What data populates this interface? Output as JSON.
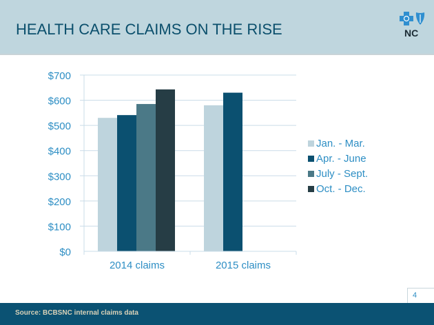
{
  "header": {
    "title": "HEALTH CARE CLAIMS ON THE RISE",
    "logo_text": "NC"
  },
  "footer": {
    "source": "Source: BCBSNC internal claims data",
    "page_number": "4"
  },
  "colors": {
    "header_bg": "#bfd6de",
    "title": "#0b4f6c",
    "axis_text": "#2d8ec4",
    "footer_bg": "#0b5273"
  },
  "chart_data": {
    "type": "bar",
    "title": "HEALTH CARE CLAIMS ON THE RISE",
    "xlabel": "",
    "ylabel": "",
    "ylim": [
      0,
      700
    ],
    "yticks": [
      0,
      100,
      200,
      300,
      400,
      500,
      600,
      700
    ],
    "ytick_labels": [
      "$0",
      "$100",
      "$200",
      "$300",
      "$400",
      "$500",
      "$600",
      "$700"
    ],
    "categories": [
      "2014 claims",
      "2015 claims"
    ],
    "grid": true,
    "legend_position": "right",
    "series": [
      {
        "name": "Jan. - Mar.",
        "color": "#bed4dd",
        "values": [
          530,
          580
        ]
      },
      {
        "name": "Apr. - June",
        "color": "#0b5070",
        "values": [
          541,
          630
        ]
      },
      {
        "name": "July - Sept.",
        "color": "#4b7987",
        "values": [
          585,
          null
        ]
      },
      {
        "name": "Oct. - Dec.",
        "color": "#263d45",
        "values": [
          643,
          null
        ]
      }
    ]
  }
}
